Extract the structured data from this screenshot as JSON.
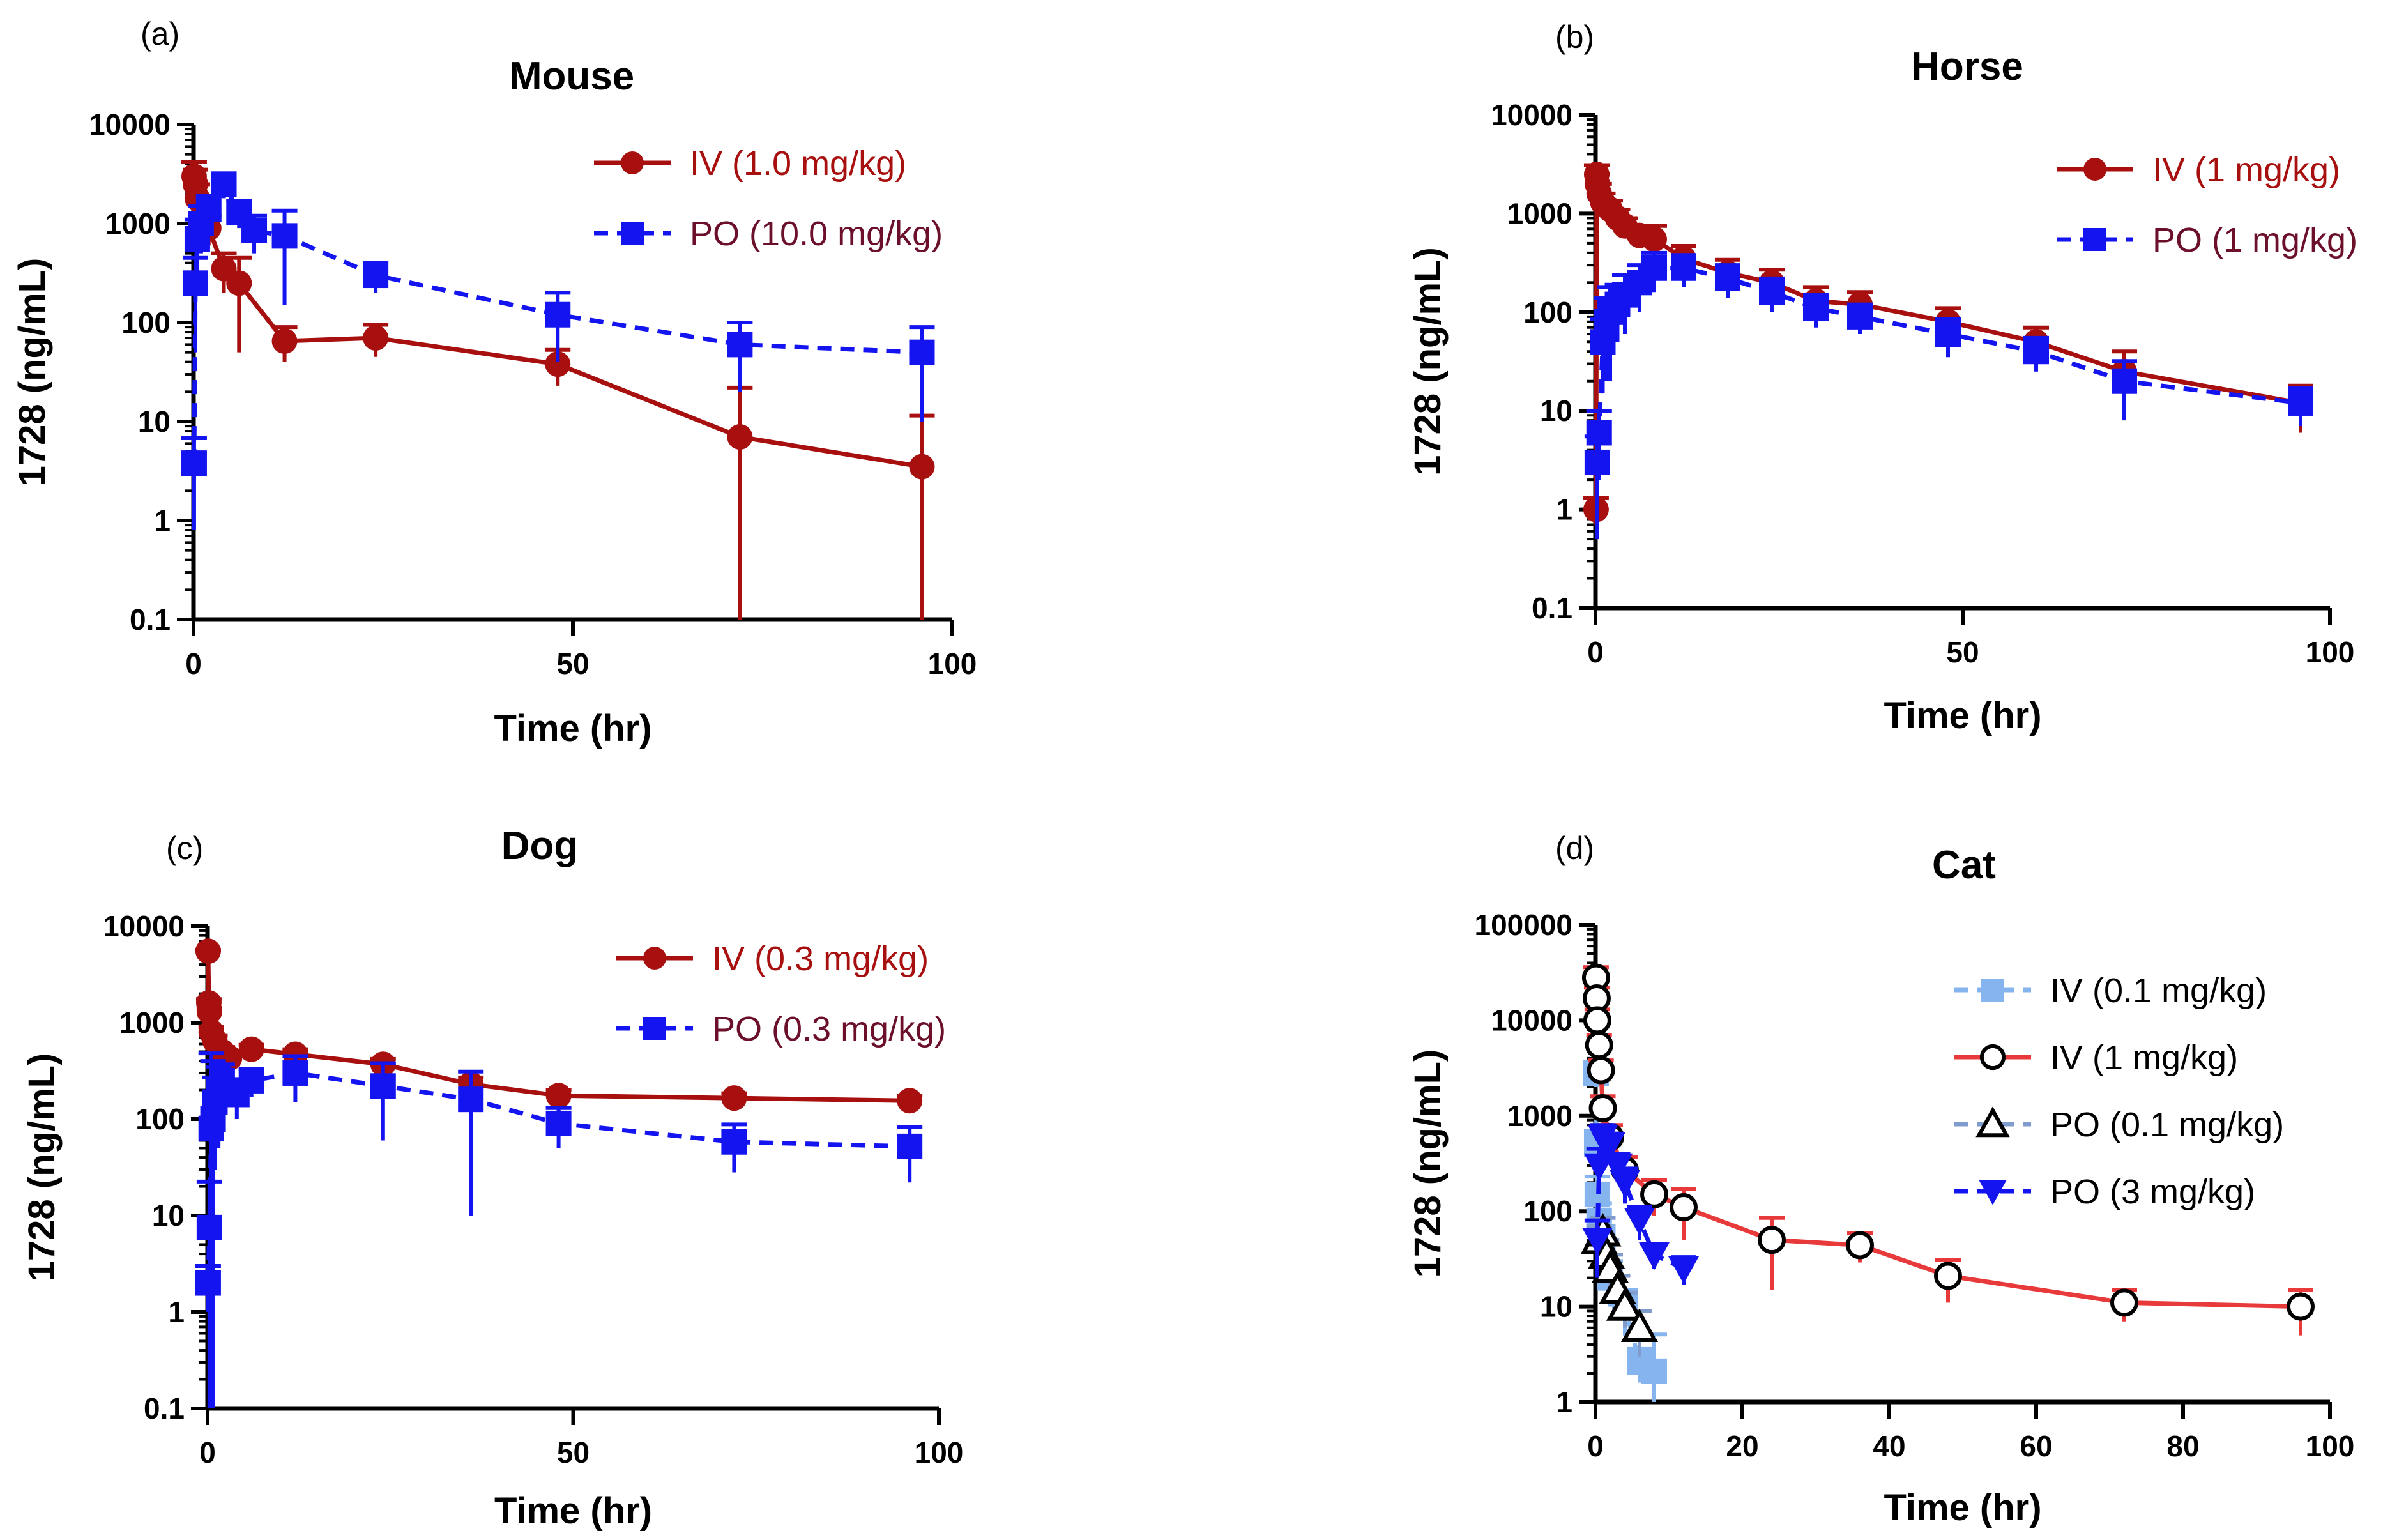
{
  "chart_data": [
    {
      "type": "line",
      "panel_label": "(a)",
      "title": "Mouse",
      "xlabel": "Time (hr)",
      "ylabel": "1728 (ng/mL)",
      "yscale": "log",
      "xlim": [
        0,
        100
      ],
      "ylim": [
        0.1,
        10000
      ],
      "xticks": [
        0,
        50,
        100
      ],
      "xtick_labels": [
        "0",
        "50",
        "100"
      ],
      "yticks": [
        0.1,
        1,
        10,
        100,
        1000,
        10000
      ],
      "ytick_labels": [
        "0.1",
        "1",
        "10",
        "100",
        "1000",
        "10000"
      ],
      "legend_position": "top-right",
      "series": [
        {
          "name": "IV (1.0 mg/kg)",
          "color": "#a80f0f",
          "marker": "circle",
          "dash": false,
          "x": [
            0.08,
            0.25,
            0.5,
            1,
            2,
            4,
            6,
            12,
            24,
            48,
            72,
            96
          ],
          "y": [
            3000,
            2500,
            1800,
            1100,
            900,
            350,
            250,
            65,
            70,
            38,
            7,
            3.5
          ],
          "err": [
            1200,
            1000,
            700,
            400,
            300,
            150,
            200,
            25,
            25,
            15,
            15,
            8
          ]
        },
        {
          "name": "PO (10.0 mg/kg)",
          "color": "#1414f0",
          "marker": "square",
          "dash": true,
          "x": [
            0.08,
            0.25,
            0.5,
            1,
            2,
            4,
            6,
            8,
            12,
            24,
            48,
            72,
            96
          ],
          "y": [
            3.8,
            250,
            700,
            1000,
            1400,
            2500,
            1300,
            850,
            750,
            300,
            120,
            60,
            50
          ],
          "err": [
            3,
            200,
            400,
            500,
            500,
            700,
            400,
            350,
            600,
            100,
            80,
            40,
            40
          ]
        }
      ]
    },
    {
      "type": "line",
      "panel_label": "(b)",
      "title": "Horse",
      "xlabel": "Time (hr)",
      "ylabel": "1728 (ng/mL)",
      "yscale": "log",
      "xlim": [
        0,
        100
      ],
      "ylim": [
        0.1,
        10000
      ],
      "xticks": [
        0,
        50,
        100
      ],
      "xtick_labels": [
        "0",
        "50",
        "100"
      ],
      "yticks": [
        0.1,
        1,
        10,
        100,
        1000,
        10000
      ],
      "ytick_labels": [
        "0.1",
        "1",
        "10",
        "100",
        "1000",
        "10000"
      ],
      "legend_position": "top-right",
      "series": [
        {
          "name": "IV (1 mg/kg)",
          "color": "#a80f0f",
          "marker": "circle",
          "dash": false,
          "x": [
            0.08,
            0.17,
            0.25,
            0.5,
            1,
            2,
            3,
            4,
            6,
            8,
            12,
            18,
            24,
            30,
            36,
            48,
            60,
            72,
            96
          ],
          "y": [
            1,
            2500,
            2000,
            1600,
            1300,
            1100,
            900,
            750,
            600,
            550,
            350,
            250,
            200,
            130,
            120,
            80,
            50,
            25,
            12
          ],
          "err": [
            0.3,
            600,
            500,
            400,
            300,
            250,
            200,
            150,
            150,
            200,
            120,
            90,
            70,
            50,
            40,
            30,
            20,
            15,
            6
          ]
        },
        {
          "name": "PO (1 mg/kg)",
          "color": "#1414f0",
          "marker": "square",
          "dash": true,
          "x": [
            0.25,
            0.5,
            1,
            1.5,
            2,
            3,
            4,
            6,
            8,
            12,
            18,
            24,
            30,
            36,
            48,
            60,
            72,
            96
          ],
          "y": [
            3,
            6,
            50,
            80,
            100,
            120,
            150,
            200,
            280,
            280,
            220,
            160,
            110,
            90,
            60,
            40,
            20,
            12
          ],
          "err": [
            2.5,
            4,
            35,
            60,
            80,
            70,
            90,
            100,
            120,
            100,
            80,
            60,
            40,
            30,
            25,
            15,
            12,
            5
          ]
        }
      ]
    },
    {
      "type": "line",
      "panel_label": "(c)",
      "title": "Dog",
      "xlabel": "Time (hr)",
      "ylabel": "1728 (ng/mL)",
      "yscale": "log",
      "xlim": [
        0,
        100
      ],
      "ylim": [
        0.1,
        10000
      ],
      "xticks": [
        0,
        50,
        100
      ],
      "xtick_labels": [
        "0",
        "50",
        "100"
      ],
      "yticks": [
        0.1,
        1,
        10,
        100,
        1000,
        10000
      ],
      "ytick_labels": [
        "0.1",
        "1",
        "10",
        "100",
        "1000",
        "10000"
      ],
      "legend_position": "top-right",
      "series": [
        {
          "name": "IV (0.3 mg/kg)",
          "color": "#a80f0f",
          "marker": "circle",
          "dash": false,
          "x": [
            0.08,
            0.17,
            0.25,
            0.5,
            1,
            2,
            3,
            6,
            12,
            24,
            36,
            48,
            72,
            96
          ],
          "y": [
            5500,
            1600,
            1300,
            800,
            650,
            500,
            430,
            530,
            470,
            370,
            230,
            175,
            165,
            155
          ],
          "err": [
            200,
            150,
            120,
            100,
            80,
            60,
            50,
            60,
            60,
            50,
            40,
            25,
            20,
            20
          ]
        },
        {
          "name": "PO (0.3 mg/kg)",
          "color": "#1414f0",
          "marker": "square",
          "dash": true,
          "x": [
            0.08,
            0.25,
            0.5,
            0.75,
            1,
            1.5,
            2,
            4,
            6,
            12,
            24,
            36,
            48,
            72,
            96
          ],
          "y": [
            2,
            7.5,
            80,
            100,
            150,
            200,
            250,
            180,
            250,
            300,
            220,
            160,
            90,
            58,
            52
          ],
          "err": [
            1,
            15,
            400,
            300,
            120,
            150,
            120,
            80,
            80,
            150,
            160,
            150,
            40,
            30,
            30
          ]
        }
      ]
    },
    {
      "type": "line",
      "panel_label": "(d)",
      "title": "Cat",
      "xlabel": "Time (hr)",
      "ylabel": "1728 (ng/mL)",
      "yscale": "log",
      "xlim": [
        0,
        100
      ],
      "ylim": [
        1,
        100000
      ],
      "xticks": [
        0,
        20,
        40,
        60,
        80,
        100
      ],
      "xtick_labels": [
        "0",
        "20",
        "40",
        "60",
        "80",
        "100"
      ],
      "yticks": [
        1,
        10,
        100,
        1000,
        10000,
        100000
      ],
      "ytick_labels": [
        "1",
        "10",
        "100",
        "1000",
        "10000",
        "100000"
      ],
      "legend_position": "top-right",
      "series": [
        {
          "name": "IV (0.1 mg/kg)",
          "color": "#85b4ee",
          "marker": "square",
          "dash": true,
          "x": [
            0.08,
            0.17,
            0.25,
            0.5,
            1,
            2,
            4,
            6,
            8
          ],
          "y": [
            2800,
            500,
            150,
            80,
            50,
            20,
            10,
            2.6,
            2.1
          ],
          "err": [
            400,
            200,
            80,
            40,
            20,
            10,
            5,
            1,
            3
          ]
        },
        {
          "name": "IV (1 mg/kg)",
          "color": "#e83a3a",
          "marker": "circle-open",
          "dash": false,
          "x": [
            0.08,
            0.17,
            0.25,
            0.5,
            0.75,
            1,
            2,
            4,
            8,
            12,
            24,
            36,
            48,
            72,
            96
          ],
          "y": [
            28000,
            17000,
            10000,
            5500,
            3000,
            1200,
            600,
            270,
            150,
            110,
            50,
            44,
            21,
            11,
            10
          ],
          "err": [
            8000,
            5000,
            3000,
            1500,
            800,
            400,
            200,
            100,
            60,
            60,
            35,
            15,
            10,
            4,
            5
          ]
        },
        {
          "name": "PO (0.1 mg/kg)",
          "color": "#7f9ccd",
          "marker": "triangle-open",
          "dash": true,
          "x": [
            0.5,
            1,
            1.5,
            2,
            3,
            4,
            6
          ],
          "y": [
            50,
            60,
            35,
            25,
            15,
            10,
            6
          ],
          "err": [
            20,
            25,
            15,
            10,
            6,
            4,
            3
          ]
        },
        {
          "name": "PO (3 mg/kg)",
          "color": "#1414f0",
          "marker": "triangle-down",
          "dash": true,
          "x": [
            0.25,
            0.5,
            1,
            1.5,
            2,
            3,
            4,
            6,
            8,
            12
          ],
          "y": [
            50,
            300,
            600,
            500,
            500,
            300,
            200,
            80,
            35,
            25
          ],
          "err": [
            30,
            150,
            200,
            150,
            150,
            100,
            80,
            30,
            10,
            8
          ]
        }
      ]
    }
  ]
}
